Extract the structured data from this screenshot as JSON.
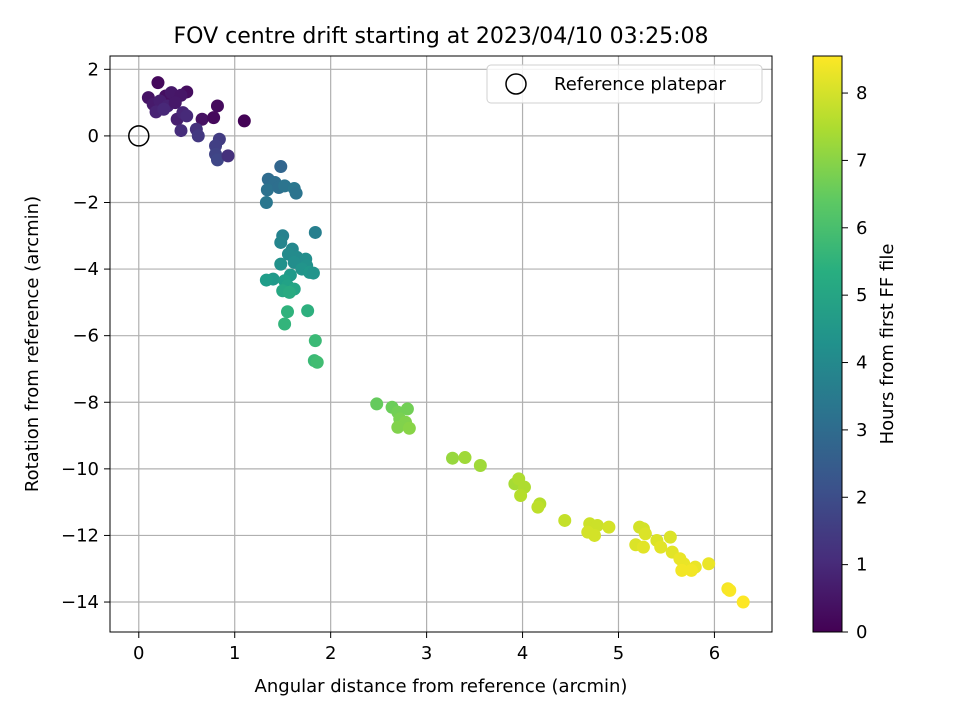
{
  "chart_data": {
    "type": "scatter",
    "title": "FOV centre drift starting at 2023/04/10 03:25:08",
    "xlabel": "Angular distance from reference (arcmin)",
    "ylabel": "Rotation from reference (arcmin)",
    "xlim": [
      -0.3,
      6.6
    ],
    "ylim": [
      -14.9,
      2.4
    ],
    "xticks": [
      "0",
      "1",
      "2",
      "3",
      "4",
      "5",
      "6"
    ],
    "yticks": [
      "2",
      "0",
      "−2",
      "−4",
      "−6",
      "−8",
      "−10",
      "−12",
      "−14"
    ],
    "grid": true,
    "legend": {
      "placement": "top-right",
      "entries": [
        "Reference platepar"
      ]
    },
    "reference_point": {
      "x": 0,
      "y": 0
    },
    "colorbar": {
      "label": "Hours from first FF file",
      "range": [
        0,
        8.55
      ],
      "ticks": [
        "0",
        "1",
        "2",
        "3",
        "4",
        "5",
        "6",
        "7",
        "8"
      ],
      "colormap": "viridis"
    },
    "points": [
      {
        "x": 0.2,
        "y": 1.6,
        "h": 0.2
      },
      {
        "x": 0.28,
        "y": 1.2,
        "h": 0.35
      },
      {
        "x": 0.1,
        "y": 1.15,
        "h": 0.45
      },
      {
        "x": 0.34,
        "y": 1.3,
        "h": 0.55
      },
      {
        "x": 0.5,
        "y": 1.32,
        "h": 0.3
      },
      {
        "x": 0.44,
        "y": 1.22,
        "h": 0.5
      },
      {
        "x": 0.15,
        "y": 0.95,
        "h": 0.6
      },
      {
        "x": 0.22,
        "y": 1.05,
        "h": 0.7
      },
      {
        "x": 0.3,
        "y": 0.9,
        "h": 0.8
      },
      {
        "x": 0.38,
        "y": 1.0,
        "h": 0.55
      },
      {
        "x": 0.4,
        "y": 0.5,
        "h": 0.75
      },
      {
        "x": 0.46,
        "y": 0.7,
        "h": 0.9
      },
      {
        "x": 0.5,
        "y": 0.6,
        "h": 1.0
      },
      {
        "x": 0.18,
        "y": 0.72,
        "h": 0.85
      },
      {
        "x": 0.26,
        "y": 0.8,
        "h": 0.95
      },
      {
        "x": 0.66,
        "y": 0.5,
        "h": 0.4
      },
      {
        "x": 0.78,
        "y": 0.55,
        "h": 0.2
      },
      {
        "x": 0.82,
        "y": 0.9,
        "h": 0.25
      },
      {
        "x": 1.1,
        "y": 0.45,
        "h": 0.05
      },
      {
        "x": 0.44,
        "y": 0.16,
        "h": 1.1
      },
      {
        "x": 0.6,
        "y": 0.2,
        "h": 1.2
      },
      {
        "x": 0.62,
        "y": 0.0,
        "h": 1.4
      },
      {
        "x": 0.84,
        "y": -0.1,
        "h": 1.5
      },
      {
        "x": 0.8,
        "y": -0.3,
        "h": 1.6
      },
      {
        "x": 0.8,
        "y": -0.55,
        "h": 1.7
      },
      {
        "x": 0.82,
        "y": -0.72,
        "h": 1.8
      },
      {
        "x": 0.93,
        "y": -0.6,
        "h": 1.2
      },
      {
        "x": 1.48,
        "y": -0.92,
        "h": 2.8
      },
      {
        "x": 1.35,
        "y": -1.3,
        "h": 3.0
      },
      {
        "x": 1.42,
        "y": -1.4,
        "h": 3.1
      },
      {
        "x": 1.34,
        "y": -1.62,
        "h": 3.2
      },
      {
        "x": 1.46,
        "y": -1.55,
        "h": 3.1
      },
      {
        "x": 1.52,
        "y": -1.5,
        "h": 3.3
      },
      {
        "x": 1.62,
        "y": -1.58,
        "h": 3.4
      },
      {
        "x": 1.64,
        "y": -1.72,
        "h": 3.3
      },
      {
        "x": 1.33,
        "y": -2.0,
        "h": 3.4
      },
      {
        "x": 1.84,
        "y": -2.9,
        "h": 3.7
      },
      {
        "x": 1.5,
        "y": -3.0,
        "h": 3.8
      },
      {
        "x": 1.48,
        "y": -3.2,
        "h": 3.9
      },
      {
        "x": 1.6,
        "y": -3.4,
        "h": 4.0
      },
      {
        "x": 1.56,
        "y": -3.55,
        "h": 4.1
      },
      {
        "x": 1.65,
        "y": -3.65,
        "h": 4.1
      },
      {
        "x": 1.74,
        "y": -3.7,
        "h": 4.2
      },
      {
        "x": 1.62,
        "y": -3.8,
        "h": 4.2
      },
      {
        "x": 1.75,
        "y": -3.9,
        "h": 4.3
      },
      {
        "x": 1.48,
        "y": -3.85,
        "h": 4.3
      },
      {
        "x": 1.7,
        "y": -4.0,
        "h": 4.4
      },
      {
        "x": 1.78,
        "y": -4.1,
        "h": 4.5
      },
      {
        "x": 1.82,
        "y": -4.12,
        "h": 4.4
      },
      {
        "x": 1.58,
        "y": -4.18,
        "h": 4.6
      },
      {
        "x": 1.4,
        "y": -4.3,
        "h": 4.6
      },
      {
        "x": 1.33,
        "y": -4.33,
        "h": 4.7
      },
      {
        "x": 1.52,
        "y": -4.35,
        "h": 4.8
      },
      {
        "x": 1.55,
        "y": -4.5,
        "h": 4.9
      },
      {
        "x": 1.62,
        "y": -4.6,
        "h": 5.0
      },
      {
        "x": 1.5,
        "y": -4.65,
        "h": 5.1
      },
      {
        "x": 1.57,
        "y": -4.7,
        "h": 5.2
      },
      {
        "x": 1.76,
        "y": -5.25,
        "h": 5.4
      },
      {
        "x": 1.55,
        "y": -5.28,
        "h": 5.5
      },
      {
        "x": 1.52,
        "y": -5.65,
        "h": 5.6
      },
      {
        "x": 1.84,
        "y": -6.15,
        "h": 5.8
      },
      {
        "x": 1.83,
        "y": -6.75,
        "h": 5.8
      },
      {
        "x": 1.86,
        "y": -6.8,
        "h": 5.9
      },
      {
        "x": 2.48,
        "y": -8.05,
        "h": 6.5
      },
      {
        "x": 2.64,
        "y": -8.15,
        "h": 6.6
      },
      {
        "x": 2.7,
        "y": -8.3,
        "h": 6.7
      },
      {
        "x": 2.8,
        "y": -8.2,
        "h": 6.7
      },
      {
        "x": 2.72,
        "y": -8.5,
        "h": 6.8
      },
      {
        "x": 2.78,
        "y": -8.6,
        "h": 6.9
      },
      {
        "x": 2.7,
        "y": -8.75,
        "h": 6.9
      },
      {
        "x": 2.82,
        "y": -8.78,
        "h": 7.0
      },
      {
        "x": 3.27,
        "y": -9.68,
        "h": 7.2
      },
      {
        "x": 3.4,
        "y": -9.66,
        "h": 7.3
      },
      {
        "x": 3.56,
        "y": -9.9,
        "h": 7.3
      },
      {
        "x": 3.92,
        "y": -10.45,
        "h": 7.4
      },
      {
        "x": 3.96,
        "y": -10.3,
        "h": 7.5
      },
      {
        "x": 4.02,
        "y": -10.55,
        "h": 7.5
      },
      {
        "x": 3.98,
        "y": -10.8,
        "h": 7.6
      },
      {
        "x": 4.18,
        "y": -11.05,
        "h": 7.6
      },
      {
        "x": 4.16,
        "y": -11.15,
        "h": 7.7
      },
      {
        "x": 4.44,
        "y": -11.55,
        "h": 7.8
      },
      {
        "x": 4.7,
        "y": -11.65,
        "h": 7.9
      },
      {
        "x": 4.78,
        "y": -11.7,
        "h": 7.9
      },
      {
        "x": 4.9,
        "y": -11.75,
        "h": 8.0
      },
      {
        "x": 4.68,
        "y": -11.9,
        "h": 8.0
      },
      {
        "x": 4.75,
        "y": -12.0,
        "h": 8.0
      },
      {
        "x": 5.22,
        "y": -11.75,
        "h": 8.0
      },
      {
        "x": 5.26,
        "y": -11.8,
        "h": 8.0
      },
      {
        "x": 5.28,
        "y": -11.95,
        "h": 8.1
      },
      {
        "x": 5.4,
        "y": -12.15,
        "h": 8.1
      },
      {
        "x": 5.54,
        "y": -12.05,
        "h": 8.1
      },
      {
        "x": 5.18,
        "y": -12.28,
        "h": 8.1
      },
      {
        "x": 5.26,
        "y": -12.35,
        "h": 8.2
      },
      {
        "x": 5.44,
        "y": -12.35,
        "h": 8.2
      },
      {
        "x": 5.56,
        "y": -12.5,
        "h": 8.2
      },
      {
        "x": 5.64,
        "y": -12.7,
        "h": 8.3
      },
      {
        "x": 5.68,
        "y": -12.85,
        "h": 8.3
      },
      {
        "x": 5.8,
        "y": -12.95,
        "h": 8.3
      },
      {
        "x": 5.94,
        "y": -12.85,
        "h": 8.3
      },
      {
        "x": 5.66,
        "y": -13.05,
        "h": 8.4
      },
      {
        "x": 5.76,
        "y": -13.05,
        "h": 8.4
      },
      {
        "x": 6.14,
        "y": -13.6,
        "h": 8.45
      },
      {
        "x": 6.16,
        "y": -13.65,
        "h": 8.5
      },
      {
        "x": 6.3,
        "y": -14.0,
        "h": 8.55
      }
    ]
  }
}
